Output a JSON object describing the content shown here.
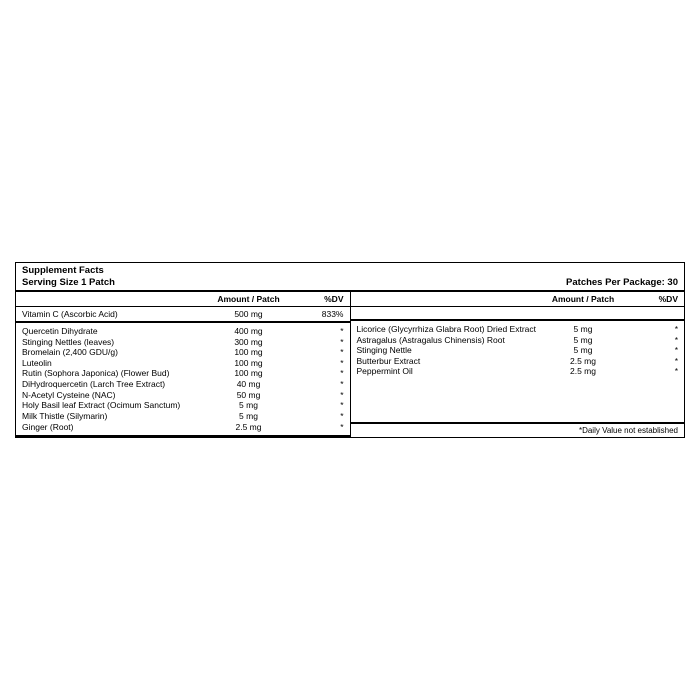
{
  "header": {
    "title": "Supplement Facts",
    "serving": "Serving Size 1 Patch",
    "package": "Patches Per Package: 30"
  },
  "col_headers": {
    "amount": "Amount / Patch",
    "dv": "%DV"
  },
  "vitamin_c": {
    "name": "Vitamin C (Ascorbic Acid)",
    "amount": "500 mg",
    "dv": "833%"
  },
  "left_ingredients": [
    {
      "name": "Quercetin Dihydrate",
      "amount": "400 mg",
      "dv": "*"
    },
    {
      "name": "Stinging Nettles (leaves)",
      "amount": "300 mg",
      "dv": "*"
    },
    {
      "name": "Bromelain (2,400 GDU/g)",
      "amount": "100 mg",
      "dv": "*"
    },
    {
      "name": "Luteolin",
      "amount": "100 mg",
      "dv": "*"
    },
    {
      "name": "Rutin (Sophora Japonica) (Flower Bud)",
      "amount": "100 mg",
      "dv": "*"
    },
    {
      "name": "DiHydroquercetin (Larch Tree Extract)",
      "amount": "40 mg",
      "dv": "*"
    },
    {
      "name": "N-Acetyl Cysteine (NAC)",
      "amount": "50 mg",
      "dv": "*"
    },
    {
      "name": "Holy Basil leaf Extract (Ocimum Sanctum)",
      "amount": "5 mg",
      "dv": "*"
    },
    {
      "name": "Milk Thistle (Silymarin)",
      "amount": "5 mg",
      "dv": "*"
    },
    {
      "name": "Ginger (Root)",
      "amount": "2.5 mg",
      "dv": "*"
    }
  ],
  "right_ingredients": [
    {
      "name": "Licorice (Glycyrrhiza Glabra Root) Dried Extract",
      "amount": "5 mg",
      "dv": "*"
    },
    {
      "name": "Astragalus (Astragalus Chinensis) Root",
      "amount": "5 mg",
      "dv": "*"
    },
    {
      "name": "Stinging Nettle",
      "amount": "5 mg",
      "dv": "*"
    },
    {
      "name": "Butterbur Extract",
      "amount": "2.5 mg",
      "dv": "*"
    },
    {
      "name": "Peppermint Oil",
      "amount": "2.5 mg",
      "dv": "*"
    }
  ],
  "footnote": "*Daily Value not established"
}
